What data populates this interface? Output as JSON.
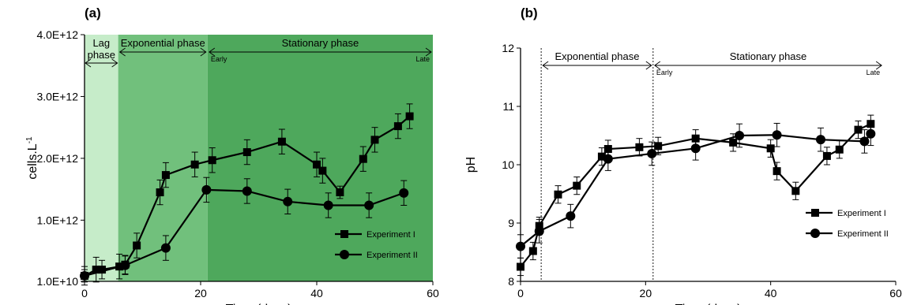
{
  "chart_data": [
    {
      "panel_label": "(a)",
      "type": "line",
      "xlabel": "Time (days)",
      "ylabel": "cells.L",
      "ylabel_superscript": "-1",
      "xlim": [
        0,
        60
      ],
      "ylim": [
        10000000000.0,
        4000000000000.0
      ],
      "x_ticks": [
        0,
        20,
        40,
        60
      ],
      "x_tick_labels": [
        "0",
        "20",
        "40",
        "60"
      ],
      "y_ticks": [
        10000000000.0,
        1000000000000.0,
        2000000000000.0,
        3000000000000.0,
        4000000000000.0
      ],
      "y_tick_labels": [
        "1.0E+10",
        "1.0E+12",
        "2.0E+12",
        "3.0E+12",
        "4.0E+12"
      ],
      "phases": [
        {
          "label_lines": [
            "Lag",
            "phase"
          ],
          "x_start": 0,
          "x_end": 5.8,
          "color": "#c6ecc9"
        },
        {
          "label_lines": [
            "Exponential phase"
          ],
          "x_start": 5.8,
          "x_end": 21.2,
          "color": "#71c07c"
        },
        {
          "label_lines": [
            "Stationary phase"
          ],
          "x_start": 21.2,
          "x_end": 60,
          "color": "#4ea85c",
          "sub_start": "Early",
          "sub_end": "Late"
        }
      ],
      "legend_position": "bottom-right",
      "series": [
        {
          "name": "Experiment I",
          "marker": "square",
          "points": [
            {
              "x": 0,
              "y": 100000000000.0,
              "err": 150000000000.0
            },
            {
              "x": 2,
              "y": 200000000000.0,
              "err": 200000000000.0
            },
            {
              "x": 3,
              "y": 200000000000.0,
              "err": 150000000000.0
            },
            {
              "x": 6,
              "y": 250000000000.0,
              "err": 200000000000.0
            },
            {
              "x": 7,
              "y": 280000000000.0,
              "err": 150000000000.0
            },
            {
              "x": 9,
              "y": 590000000000.0,
              "err": 200000000000.0
            },
            {
              "x": 13,
              "y": 1450000000000.0,
              "err": 200000000000.0
            },
            {
              "x": 14,
              "y": 1730000000000.0,
              "err": 200000000000.0
            },
            {
              "x": 19,
              "y": 1900000000000.0,
              "err": 200000000000.0
            },
            {
              "x": 22,
              "y": 1970000000000.0,
              "err": 200000000000.0
            },
            {
              "x": 28,
              "y": 2100000000000.0,
              "err": 200000000000.0
            },
            {
              "x": 34,
              "y": 2270000000000.0,
              "err": 200000000000.0
            },
            {
              "x": 40,
              "y": 1900000000000.0,
              "err": 200000000000.0
            },
            {
              "x": 41,
              "y": 1800000000000.0,
              "err": 200000000000.0
            },
            {
              "x": 44,
              "y": 1450000000000.0,
              "err": 100000000000.0
            },
            {
              "x": 48,
              "y": 1990000000000.0,
              "err": 200000000000.0
            },
            {
              "x": 50,
              "y": 2300000000000.0,
              "err": 200000000000.0
            },
            {
              "x": 54,
              "y": 2520000000000.0,
              "err": 200000000000.0
            },
            {
              "x": 56,
              "y": 2680000000000.0,
              "err": 200000000000.0
            }
          ]
        },
        {
          "name": "Experiment II",
          "marker": "circle",
          "points": [
            {
              "x": 0,
              "y": 100000000000.0,
              "err": 100000000000.0
            },
            {
              "x": 7,
              "y": 270000000000.0,
              "err": 150000000000.0
            },
            {
              "x": 14,
              "y": 550000000000.0,
              "err": 200000000000.0
            },
            {
              "x": 21,
              "y": 1490000000000.0,
              "err": 200000000000.0
            },
            {
              "x": 28,
              "y": 1470000000000.0,
              "err": 200000000000.0
            },
            {
              "x": 35,
              "y": 1300000000000.0,
              "err": 200000000000.0
            },
            {
              "x": 42,
              "y": 1240000000000.0,
              "err": 200000000000.0
            },
            {
              "x": 49,
              "y": 1240000000000.0,
              "err": 200000000000.0
            },
            {
              "x": 55,
              "y": 1440000000000.0,
              "err": 200000000000.0
            }
          ]
        }
      ]
    },
    {
      "panel_label": "(b)",
      "type": "line",
      "xlabel": "Time (days)",
      "ylabel": "pH",
      "xlim": [
        0,
        60
      ],
      "ylim": [
        8,
        12
      ],
      "x_ticks": [
        0,
        20,
        40,
        60
      ],
      "x_tick_labels": [
        "0",
        "20",
        "40",
        "60"
      ],
      "y_ticks": [
        8,
        9,
        10,
        11,
        12
      ],
      "y_tick_labels": [
        "8",
        "9",
        "10",
        "11",
        "12"
      ],
      "phase_dividers": [
        3.3,
        21.2
      ],
      "phases": [
        {
          "label_lines": [
            "Exponential phase"
          ],
          "x_start": 3.3,
          "x_end": 21.2
        },
        {
          "label_lines": [
            "Stationary phase"
          ],
          "x_start": 21.2,
          "x_end": 58,
          "sub_start": "Early",
          "sub_end": "Late"
        }
      ],
      "legend_position": "right",
      "series": [
        {
          "name": "Experiment I",
          "marker": "square",
          "points": [
            {
              "x": 0,
              "y": 8.25,
              "err": 0.15
            },
            {
              "x": 2,
              "y": 8.52,
              "err": 0.15
            },
            {
              "x": 3,
              "y": 8.95,
              "err": 0.15
            },
            {
              "x": 6,
              "y": 9.49,
              "err": 0.15
            },
            {
              "x": 9,
              "y": 9.64,
              "err": 0.15
            },
            {
              "x": 13,
              "y": 10.14,
              "err": 0.15
            },
            {
              "x": 14,
              "y": 10.27,
              "err": 0.15
            },
            {
              "x": 19,
              "y": 10.3,
              "err": 0.15
            },
            {
              "x": 22,
              "y": 10.32,
              "err": 0.15
            },
            {
              "x": 28,
              "y": 10.45,
              "err": 0.15
            },
            {
              "x": 34,
              "y": 10.38,
              "err": 0.15
            },
            {
              "x": 40,
              "y": 10.28,
              "err": 0.15
            },
            {
              "x": 41,
              "y": 9.89,
              "err": 0.15
            },
            {
              "x": 44,
              "y": 9.55,
              "err": 0.15
            },
            {
              "x": 49,
              "y": 10.15,
              "err": 0.15
            },
            {
              "x": 51,
              "y": 10.26,
              "err": 0.15
            },
            {
              "x": 54,
              "y": 10.6,
              "err": 0.15
            },
            {
              "x": 56,
              "y": 10.7,
              "err": 0.15
            }
          ]
        },
        {
          "name": "Experiment II",
          "marker": "circle",
          "points": [
            {
              "x": 0,
              "y": 8.6,
              "err": 0.2
            },
            {
              "x": 3,
              "y": 8.86,
              "err": 0.2
            },
            {
              "x": 8,
              "y": 9.12,
              "err": 0.2
            },
            {
              "x": 14,
              "y": 10.1,
              "err": 0.2
            },
            {
              "x": 21,
              "y": 10.19,
              "err": 0.2
            },
            {
              "x": 28,
              "y": 10.28,
              "err": 0.2
            },
            {
              "x": 35,
              "y": 10.5,
              "err": 0.2
            },
            {
              "x": 41,
              "y": 10.51,
              "err": 0.2
            },
            {
              "x": 48,
              "y": 10.43,
              "err": 0.2
            },
            {
              "x": 55,
              "y": 10.4,
              "err": 0.2
            },
            {
              "x": 56,
              "y": 10.53,
              "err": 0.2
            }
          ]
        }
      ]
    }
  ]
}
